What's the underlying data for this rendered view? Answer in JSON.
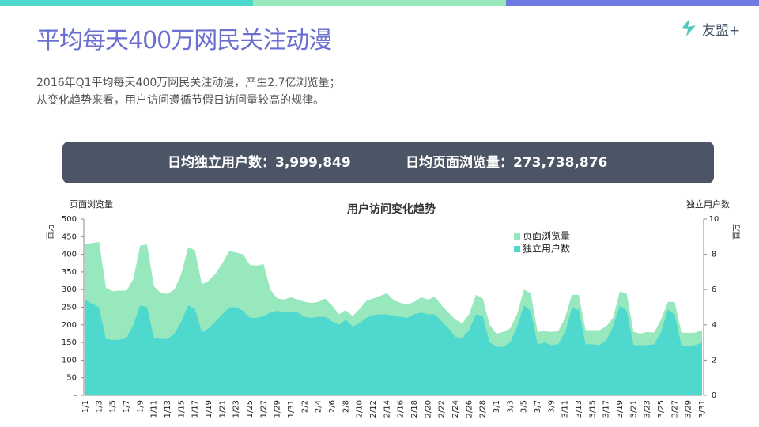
{
  "header": {
    "title": "平均每天400万网民关注动漫",
    "logo": "友盟+"
  },
  "summary": [
    "2016年Q1平均每天400万网民关注动漫，产生2.7亿浏览量；",
    "从变化趋势来看，用户访问遵循节假日访问量较高的规律。"
  ],
  "banner": {
    "unique_users": "日均独立用户数：3,999,849",
    "page_views": "日均页面浏览量：273,738,876"
  },
  "chart_data": {
    "type": "area",
    "title": "用户访问变化趋势",
    "y_label": "页面浏览量",
    "y_unit": "百万",
    "y2_label": "独立用户数",
    "y2_unit": "百万",
    "categories": [
      "1/1",
      null,
      "1/3",
      null,
      "1/5",
      null,
      "1/7",
      null,
      "1/9",
      null,
      "1/11",
      null,
      "1/13",
      null,
      "1/15",
      null,
      "1/17",
      null,
      "1/19",
      null,
      "1/21",
      null,
      "1/23",
      null,
      "1/25",
      null,
      "1/27",
      null,
      "1/29",
      null,
      "1/31",
      null,
      "2/2",
      null,
      "2/4",
      null,
      "2/6",
      null,
      "2/8",
      null,
      "2/10",
      null,
      "2/12",
      null,
      "2/14",
      null,
      "2/16",
      null,
      "2/18",
      null,
      "2/20",
      null,
      "2/22",
      null,
      "2/24",
      null,
      "2/26",
      null,
      "2/28",
      null,
      "3/1",
      null,
      "3/3",
      null,
      "3/5",
      null,
      "3/7",
      null,
      "3/9",
      null,
      "3/11",
      null,
      "3/13",
      null,
      "3/15",
      null,
      "3/17",
      null,
      "3/19",
      null,
      "3/21",
      null,
      "3/23",
      null,
      "3/25",
      null,
      "3/27",
      null,
      "3/29",
      null,
      "3/31"
    ],
    "series": [
      {
        "name": "页面浏览量",
        "color": "#98e8bd",
        "axis": "y",
        "values": [
          430,
          432,
          435,
          305,
          295,
          297,
          297,
          330,
          425,
          428,
          310,
          290,
          288,
          300,
          345,
          420,
          412,
          315,
          325,
          345,
          375,
          410,
          405,
          400,
          370,
          368,
          372,
          300,
          275,
          272,
          278,
          272,
          265,
          262,
          265,
          275,
          255,
          230,
          242,
          225,
          245,
          268,
          275,
          282,
          290,
          270,
          262,
          258,
          265,
          278,
          272,
          280,
          255,
          235,
          215,
          205,
          230,
          285,
          275,
          200,
          175,
          180,
          190,
          230,
          300,
          290,
          180,
          182,
          180,
          182,
          220,
          285,
          285,
          185,
          185,
          185,
          195,
          220,
          295,
          288,
          180,
          175,
          180,
          178,
          215,
          265,
          265,
          178,
          177,
          178,
          185
        ]
      },
      {
        "name": "独立用户数",
        "color": "#4fd8cd",
        "axis": "y2",
        "values": [
          5.4,
          5.2,
          5.0,
          3.2,
          3.15,
          3.15,
          3.25,
          4.0,
          5.1,
          5.0,
          3.25,
          3.2,
          3.2,
          3.5,
          4.2,
          5.1,
          4.9,
          3.6,
          3.8,
          4.2,
          4.6,
          5.0,
          5.0,
          4.8,
          4.4,
          4.4,
          4.5,
          4.7,
          4.8,
          4.7,
          4.75,
          4.7,
          4.45,
          4.4,
          4.45,
          4.45,
          4.2,
          4.0,
          4.3,
          3.9,
          4.1,
          4.4,
          4.55,
          4.6,
          4.6,
          4.5,
          4.45,
          4.4,
          4.6,
          4.7,
          4.6,
          4.6,
          4.2,
          3.8,
          3.3,
          3.25,
          3.7,
          4.6,
          4.5,
          3.0,
          2.75,
          2.75,
          3.0,
          3.9,
          5.1,
          4.8,
          2.9,
          3.0,
          2.85,
          2.9,
          3.6,
          4.95,
          4.85,
          2.9,
          2.9,
          2.85,
          3.1,
          3.9,
          5.1,
          4.8,
          2.85,
          2.85,
          2.85,
          2.9,
          3.6,
          4.85,
          4.6,
          2.8,
          2.8,
          2.85,
          3.0
        ]
      }
    ],
    "ylim": [
      0,
      500
    ],
    "yticks": [
      {
        "value": 0,
        "label": "-"
      },
      50,
      100,
      150,
      200,
      250,
      300,
      350,
      400,
      450,
      500
    ],
    "y2lim": [
      0,
      10
    ],
    "y2ticks": [
      0,
      2,
      4,
      6,
      8,
      10
    ]
  }
}
